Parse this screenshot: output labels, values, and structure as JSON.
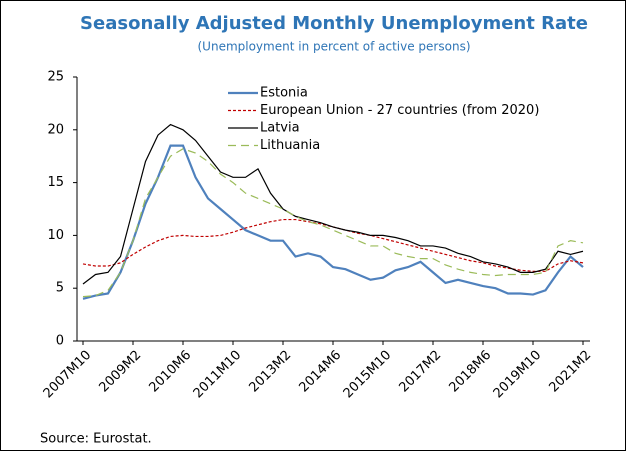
{
  "chart_data": {
    "type": "line",
    "title": "Seasonally Adjusted Monthly Unemployment Rate",
    "subtitle": "(Unemployment in percent of active persons)",
    "source": "Source: Eurostat.",
    "categories": [
      "2007M10",
      null,
      null,
      null,
      "2009M2",
      null,
      null,
      null,
      "2010M6",
      null,
      null,
      null,
      "2011M10",
      null,
      null,
      null,
      "2013M2",
      null,
      null,
      null,
      "2014M6",
      null,
      null,
      null,
      "2015M10",
      null,
      null,
      null,
      "2017M2",
      null,
      null,
      null,
      "2018M6",
      null,
      null,
      null,
      "2019M10",
      null,
      null,
      null,
      "2021M2"
    ],
    "ylim": [
      0,
      25
    ],
    "yticks": [
      0,
      5,
      10,
      15,
      20,
      25
    ],
    "grid": false,
    "legend": "upper center",
    "series": [
      {
        "name": "Estonia",
        "color": "#4f81bd",
        "dash": "solid",
        "linewidth": 2.2,
        "values": [
          4.0,
          4.3,
          4.5,
          6.5,
          9.5,
          13,
          15.5,
          18.5,
          18.5,
          15.5,
          13.5,
          12.5,
          11.5,
          10.5,
          10,
          9.5,
          9.5,
          8,
          8.3,
          8,
          7,
          6.8,
          6.3,
          5.8,
          6,
          6.7,
          7,
          7.5,
          6.5,
          5.5,
          5.8,
          5.5,
          5.2,
          5.0,
          4.5,
          4.5,
          4.4,
          4.8,
          6.5,
          8,
          7
        ]
      },
      {
        "name": "European Union - 27 countries (from 2020)",
        "color": "#c00000",
        "dash": "dotted",
        "linewidth": 1.2,
        "values": [
          7.3,
          7.1,
          7.1,
          7.4,
          8.2,
          8.9,
          9.5,
          9.9,
          10.0,
          9.9,
          9.9,
          10.0,
          10.3,
          10.7,
          11.0,
          11.3,
          11.5,
          11.5,
          11.3,
          11.1,
          10.8,
          10.5,
          10.2,
          10.0,
          9.7,
          9.4,
          9.1,
          8.8,
          8.5,
          8.2,
          7.9,
          7.6,
          7.4,
          7.1,
          6.9,
          6.7,
          6.6,
          6.6,
          7.3,
          7.6,
          7.4
        ]
      },
      {
        "name": "Latvia",
        "color": "#000000",
        "dash": "solid",
        "linewidth": 1.2,
        "values": [
          5.4,
          6.3,
          6.5,
          8.0,
          12.5,
          17,
          19.5,
          20.5,
          20.0,
          19.0,
          17.5,
          16.0,
          15.5,
          15.5,
          16.3,
          14.0,
          12.5,
          11.8,
          11.5,
          11.2,
          10.8,
          10.5,
          10.3,
          10.0,
          10.0,
          9.8,
          9.5,
          9.0,
          9.0,
          8.8,
          8.3,
          8.0,
          7.5,
          7.3,
          7.0,
          6.5,
          6.5,
          6.8,
          8.5,
          8.2,
          8.5
        ]
      },
      {
        "name": "Lithuania",
        "color": "#9bbb59",
        "dash": "dashed",
        "linewidth": 1.2,
        "values": [
          4.2,
          4.3,
          4.8,
          6.5,
          9.5,
          13.5,
          15.5,
          17.5,
          18.2,
          17.8,
          17.0,
          15.8,
          15.0,
          14.0,
          13.5,
          13.0,
          12.5,
          11.8,
          11.3,
          11.0,
          10.5,
          10.0,
          9.5,
          9.0,
          9.0,
          8.3,
          8.0,
          7.8,
          7.8,
          7.2,
          6.8,
          6.5,
          6.3,
          6.2,
          6.3,
          6.3,
          6.3,
          6.5,
          9.0,
          9.5,
          9.3
        ]
      }
    ]
  }
}
